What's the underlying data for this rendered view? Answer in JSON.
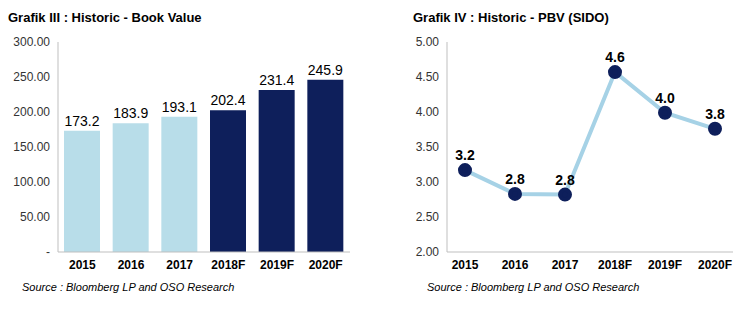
{
  "chart_data": [
    {
      "type": "bar",
      "title": "Grafik III : Historic - Book Value",
      "source": "Source : Bloomberg LP and OSO Research",
      "categories": [
        "2015",
        "2016",
        "2017",
        "2018F",
        "2019F",
        "2020F"
      ],
      "values": [
        173.2,
        183.9,
        193.1,
        202.4,
        231.4,
        245.9
      ],
      "colors": [
        "#b8dde9",
        "#b8dde9",
        "#b8dde9",
        "#0e1f5b",
        "#0e1f5b",
        "#0e1f5b"
      ],
      "ylim": [
        0,
        300
      ],
      "yticks": [
        {
          "value": 0,
          "label": "-"
        },
        {
          "value": 50,
          "label": "50.00"
        },
        {
          "value": 100,
          "label": "100.00"
        },
        {
          "value": 150,
          "label": "150.00"
        },
        {
          "value": 200,
          "label": "200.00"
        },
        {
          "value": 250,
          "label": "250.00"
        },
        {
          "value": 300,
          "label": "300.00"
        }
      ],
      "grid": false,
      "data_labels": true
    },
    {
      "type": "line",
      "title": "Grafik IV : Historic - PBV (SIDO)",
      "source": "Source : Bloomberg LP and OSO Research",
      "categories": [
        "2015",
        "2016",
        "2017",
        "2018F",
        "2019F",
        "2020F"
      ],
      "values": [
        3.17,
        2.83,
        2.82,
        4.57,
        3.99,
        3.76
      ],
      "value_labels": [
        "3.2",
        "2.8",
        "2.8",
        "4.6",
        "4.0",
        "3.8"
      ],
      "color": "#a6d2e6",
      "marker": "circle",
      "ylim": [
        2,
        5
      ],
      "yticks": [
        {
          "value": 2,
          "label": "2.00"
        },
        {
          "value": 2.5,
          "label": "2.50"
        },
        {
          "value": 3,
          "label": "3.00"
        },
        {
          "value": 3.5,
          "label": "3.50"
        },
        {
          "value": 4,
          "label": "4.00"
        },
        {
          "value": 4.5,
          "label": "4.50"
        },
        {
          "value": 5,
          "label": "5.00"
        }
      ],
      "grid": false,
      "data_labels": true
    }
  ]
}
